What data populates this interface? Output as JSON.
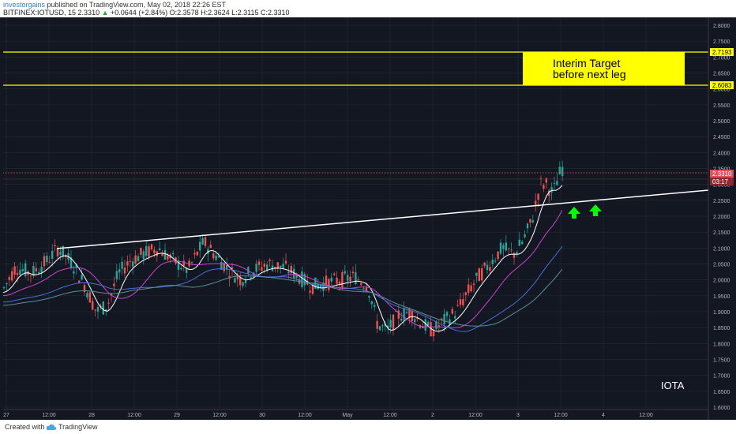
{
  "header": {
    "username": "investorgains",
    "published_text": "published on TradingView.com, May 02, 2018 22:26 EST",
    "symbol": "BITFINEX:IOTUSD, 15",
    "last": "2.3310",
    "change_arrow": "▲",
    "change": "+0.0644 (+2.84%)",
    "ohlc": "O:2.3578 H:2.3624 L:2.3115 C:2.3310"
  },
  "price_axis": {
    "ticks": [
      "2.8000",
      "2.7500",
      "2.7000",
      "2.6500",
      "2.6000",
      "2.5500",
      "2.5000",
      "2.4500",
      "2.4000",
      "2.3500",
      "2.3000",
      "2.2500",
      "2.2000",
      "2.1500",
      "2.1000",
      "2.0500",
      "2.0000",
      "1.9500",
      "1.9000",
      "1.8500",
      "1.8000",
      "1.7500",
      "1.7000",
      "1.6500",
      "1.6000"
    ],
    "level_high": "2.7193",
    "level_low": "2.6083",
    "last_price": "2.3310",
    "countdown": "03:17"
  },
  "time_axis": {
    "ticks": [
      "27",
      "12:00",
      "28",
      "12:00",
      "29",
      "12:00",
      "30",
      "12:00",
      "May",
      "12:00",
      "2",
      "12:00",
      "3",
      "12:00",
      "4",
      "12:00"
    ]
  },
  "annotations": {
    "target_line1": "Interim Target",
    "target_line2": "before next leg",
    "asset_label": "IOTA"
  },
  "colors": {
    "background": "#131722",
    "grid": "#2a2e39",
    "up_candle": "#26a69a",
    "down_candle": "#ef5350",
    "target_box": "#ffff00",
    "level_line": "#ffff00",
    "trendline": "#ffffff",
    "arrows": "#00ff00",
    "ma_fast": "#ffffff",
    "ma_mid": "#cc44cc",
    "ma_slow": "#4a6fd6",
    "ma_slowest": "#5a8f9a"
  },
  "footer": {
    "created_with": "Created with",
    "brand": "TradingView"
  }
}
